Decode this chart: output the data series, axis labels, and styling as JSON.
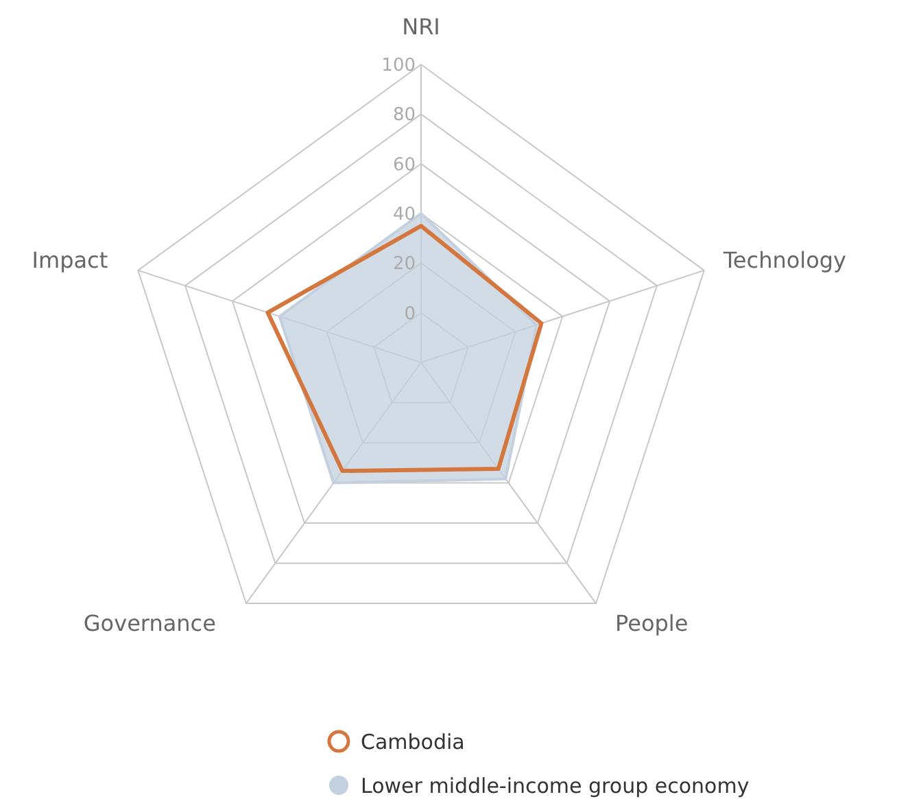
{
  "chart_data": {
    "type": "radar",
    "categories": [
      "NRI",
      "Technology",
      "People",
      "Governance",
      "Impact"
    ],
    "ylim": [
      -20,
      100
    ],
    "yticks": [
      0,
      20,
      40,
      60,
      80,
      100
    ],
    "legend": "bottom",
    "series": [
      {
        "name": "Cambodia",
        "color": "#d4773f",
        "values": [
          35,
          31,
          33,
          34,
          45
        ]
      },
      {
        "name": "Lower middle-income group economy",
        "type": "area",
        "color": "#c3d0df",
        "values": [
          40,
          29,
          38,
          40,
          40
        ]
      }
    ]
  }
}
